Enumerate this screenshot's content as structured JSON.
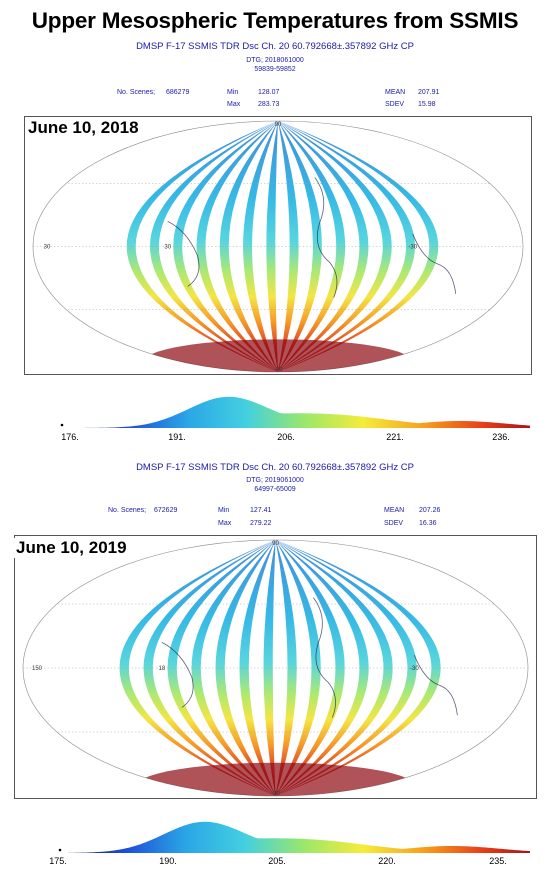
{
  "title": "Upper Mesospheric Temperatures from SSMIS",
  "panels": [
    {
      "header": "DMSP F-17 SSMIS TDR Dsc Ch. 20 60.792668±.357892 GHz CP",
      "dtg": "DTG; 2018061000",
      "orbits": "59839-59852",
      "scenes_label": "No. Scenes;",
      "scenes_value": "686279",
      "min_label": "Min",
      "min_value": "128.07",
      "max_label": "Max",
      "max_value": "283.73",
      "mean_label": "MEAN",
      "mean_value": "207.91",
      "sdev_label": "SDEV",
      "sdev_value": "15.98",
      "date": "June 10, 2018",
      "map_labels": {
        "top": "90",
        "bottom": "-90",
        "left_lat": "30",
        "lon_a": "30",
        "lon_b": "-30"
      },
      "colorbar_ticks": [
        "176.",
        "191.",
        "206.",
        "221.",
        "236."
      ],
      "histogram_peak": 197,
      "histogram_secondary": 228
    },
    {
      "header": "DMSP F-17 SSMIS TDR Dsc Ch. 20 60.792668±.357892 GHz CP",
      "dtg": "DTG; 2019061000",
      "orbits": "64997-65009",
      "scenes_label": "No. Scenes;",
      "scenes_value": "672629",
      "min_label": "Min",
      "min_value": "127.41",
      "max_label": "Max",
      "max_value": "279.22",
      "mean_label": "MEAN",
      "mean_value": "207.26",
      "sdev_label": "SDEV",
      "sdev_value": "16.36",
      "date": "June 10, 2019",
      "map_labels": {
        "top": "90",
        "bottom": "-90",
        "left_lat": "150",
        "lon_a": "18",
        "lon_b": "-30"
      },
      "colorbar_ticks": [
        "175.",
        "190.",
        "205.",
        "220.",
        "235."
      ],
      "histogram_peak": 193,
      "histogram_secondary": 226
    }
  ],
  "colors": {
    "text_blue": "#1a1aa8",
    "colormap": [
      "#0a1a8c",
      "#1f4fd8",
      "#2aa6e6",
      "#43d0e0",
      "#9ae86a",
      "#f5ec3a",
      "#f7a21b",
      "#e8401a",
      "#9c0a12"
    ]
  }
}
